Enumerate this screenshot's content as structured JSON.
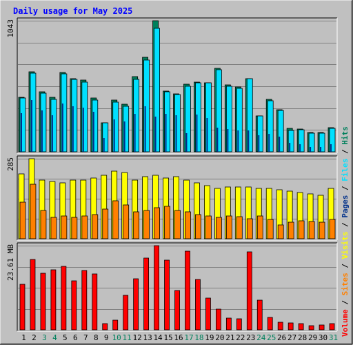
{
  "chart_data": {
    "type": "bar",
    "title": "Daily usage for May 2025",
    "categories": [
      "1",
      "2",
      "3",
      "4",
      "5",
      "6",
      "7",
      "8",
      "9",
      "10",
      "11",
      "12",
      "13",
      "14",
      "15",
      "16",
      "17",
      "18",
      "19",
      "20",
      "21",
      "22",
      "23",
      "24",
      "25",
      "26",
      "27",
      "28",
      "29",
      "30",
      "31"
    ],
    "weekend_days": [
      "3",
      "4",
      "10",
      "11",
      "17",
      "18",
      "24",
      "25",
      "31"
    ],
    "panels": [
      {
        "name": "hits-files-pages",
        "ylim": [
          0,
          1043
        ],
        "max_label": "1043",
        "series": [
          {
            "name": "Hits",
            "color": "#00805c",
            "values": [
              433,
              639,
              476,
              431,
              634,
              580,
              570,
              426,
              233,
              414,
              378,
              598,
              751,
              1043,
              485,
              462,
              540,
              557,
              550,
              664,
              531,
              518,
              583,
              284,
              418,
              333,
              188,
              183,
              153,
              154,
              192
            ]
          },
          {
            "name": "Files",
            "color": "#00e0ff",
            "values": [
              426,
              625,
              467,
              417,
              620,
              577,
              556,
              414,
              232,
              397,
              363,
              578,
              731,
              982,
              477,
              455,
              521,
              549,
              547,
              651,
              520,
              507,
              580,
              283,
              407,
              331,
              172,
              175,
              147,
              150,
              184
            ]
          },
          {
            "name": "Pages",
            "color": "#00308a",
            "values": [
              310,
              410,
              330,
              290,
              385,
              360,
              350,
              320,
              110,
              260,
              240,
              300,
              360,
              280,
              300,
              290,
              150,
              295,
              270,
              190,
              180,
              170,
              170,
              130,
              140,
              120,
              70,
              60,
              40,
              40,
              60
            ]
          }
        ]
      },
      {
        "name": "visits-sites",
        "ylim": [
          0,
          285
        ],
        "max_label": "285",
        "series": [
          {
            "name": "Visits",
            "color": "#ffff00",
            "values": [
              230,
              285,
              210,
              205,
              200,
              208,
              210,
              215,
              225,
              240,
              235,
              210,
              220,
              225,
              215,
              220,
              210,
              200,
              190,
              180,
              185,
              185,
              185,
              180,
              180,
              175,
              170,
              165,
              160,
              155,
              180
            ]
          },
          {
            "name": "Sites",
            "color": "#ff8000",
            "values": [
              130,
              195,
              100,
              75,
              80,
              75,
              80,
              85,
              105,
              135,
              120,
              95,
              100,
              110,
              115,
              100,
              95,
              85,
              80,
              75,
              80,
              78,
              72,
              80,
              70,
              50,
              60,
              65,
              62,
              60,
              70
            ]
          }
        ]
      },
      {
        "name": "volume",
        "ylim": [
          0,
          23.61
        ],
        "max_label": "23.61 MB",
        "series": [
          {
            "name": "Volume",
            "color": "#ff0000",
            "values": [
              12.8,
              19.8,
              15.9,
              16.9,
              17.9,
              13.8,
              16.7,
              15.6,
              1.7,
              2.8,
              9.7,
              14.3,
              20.1,
              23.6,
              19.5,
              11.1,
              22.0,
              14.2,
              8.9,
              5.9,
              3.3,
              3.1,
              21.8,
              8.3,
              3.5,
              2.1,
              1.9,
              1.8,
              1.2,
              1.4,
              1.8
            ]
          }
        ]
      }
    ],
    "legend": {
      "items": [
        {
          "label": "Volume",
          "color": "#ff0000"
        },
        {
          "label": "Sites",
          "color": "#ff8000"
        },
        {
          "label": "Visits",
          "color": "#ffff00"
        },
        {
          "label": "Pages",
          "color": "#00308a"
        },
        {
          "label": "Files",
          "color": "#00e0ff"
        },
        {
          "label": "Hits",
          "color": "#00805c"
        }
      ],
      "separator": "/"
    },
    "colors": {
      "background": "#c0c0c0",
      "weekday_label": "#000000",
      "weekend_label": "#00805c",
      "title": "#0000ff"
    }
  }
}
